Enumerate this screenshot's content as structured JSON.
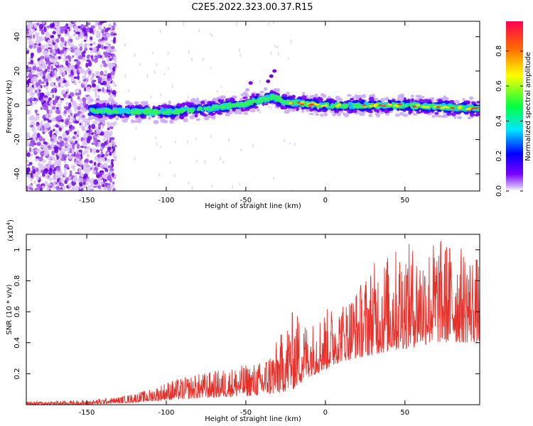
{
  "title": "C2E5.2022.323.00.37.R15",
  "colors": {
    "snr_line": "#e8302a",
    "axis": "#000000",
    "background": "#ffffff"
  },
  "chart_data": [
    {
      "type": "heatmap",
      "name": "spectrogram",
      "xlabel": "Height of straight line (km)",
      "ylabel": "Frequency (Hz)",
      "xlim": [
        -188,
        97
      ],
      "ylim": [
        -50,
        49
      ],
      "xticks": [
        -150,
        -100,
        -50,
        0,
        50
      ],
      "yticks": [
        -40,
        -20,
        0,
        20,
        40
      ],
      "colorbar": {
        "label": "Normalized spectral amplitude",
        "range": [
          0.0,
          0.97
        ],
        "ticks": [
          0.0,
          0.2,
          0.4,
          0.6,
          0.8
        ],
        "colormap": [
          "#ffffff",
          "#7a00ff",
          "#0000ff",
          "#00e5ff",
          "#00ff40",
          "#ffff00",
          "#ff6a00",
          "#ff0050"
        ]
      },
      "features": {
        "noise_region_x": [
          -188,
          -132
        ],
        "signal_band_start_x": -148,
        "band_center_freq": [
          [
            -148,
            -3
          ],
          [
            -100,
            -4
          ],
          [
            -75,
            -2
          ],
          [
            -50,
            1
          ],
          [
            -32,
            5
          ],
          [
            -27,
            2
          ],
          [
            0,
            0
          ],
          [
            50,
            0
          ],
          [
            97,
            -2
          ]
        ],
        "band_halfwidth_hz": 3
      }
    },
    {
      "type": "line",
      "name": "snr",
      "xlabel": "Height of straight line (km)",
      "ylabel": "SNR (10 * v/v)",
      "ylabel_exponent": "(x10",
      "ylabel_exponent_power": "4",
      "ylabel_exponent_close": ")",
      "xlim": [
        -188,
        97
      ],
      "ylim": [
        0,
        1.1
      ],
      "xticks": [
        -150,
        -100,
        -50,
        0,
        50
      ],
      "yticks": [
        0.2,
        0.4,
        0.6,
        0.8,
        1.0
      ],
      "series": [
        {
          "name": "SNR",
          "envelope_x": [
            -188,
            -150,
            -130,
            -110,
            -100,
            -80,
            -60,
            -40,
            -30,
            -20,
            -10,
            0,
            10,
            20,
            30,
            40,
            50,
            60,
            70,
            80,
            90,
            97
          ],
          "envelope_min": [
            0.0,
            0.0,
            0.01,
            0.02,
            0.03,
            0.04,
            0.05,
            0.06,
            0.07,
            0.1,
            0.18,
            0.22,
            0.28,
            0.3,
            0.32,
            0.34,
            0.36,
            0.38,
            0.4,
            0.4,
            0.4,
            0.4
          ],
          "envelope_max": [
            0.02,
            0.03,
            0.05,
            0.1,
            0.15,
            0.2,
            0.24,
            0.28,
            0.42,
            0.62,
            0.52,
            0.62,
            0.66,
            0.76,
            0.92,
            0.98,
            1.05,
            1.02,
            1.08,
            1.05,
            1.0,
            0.95
          ]
        }
      ]
    }
  ]
}
